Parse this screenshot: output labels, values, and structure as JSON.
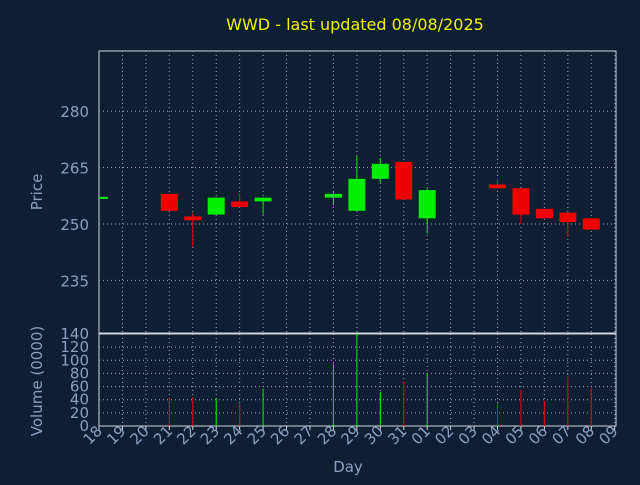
{
  "colors": {
    "background": "#0f1f33",
    "frame": "#cfd6de",
    "grid": "#9aa4b0",
    "title": "#f2f200",
    "axis_text": "#8aa0bf",
    "up": "#00ee00",
    "down": "#ee0000"
  },
  "chart_data": [
    {
      "type": "candlestick",
      "title": "WWD - last updated 08/08/2025",
      "ylabel": "Price",
      "ylim": [
        221,
        296
      ],
      "yticks": [
        235,
        250,
        265,
        280
      ],
      "grid": true,
      "x_labels": [
        "18",
        "19",
        "20",
        "21",
        "22",
        "23",
        "24",
        "25",
        "26",
        "27",
        "28",
        "29",
        "30",
        "31",
        "01",
        "02",
        "03",
        "04",
        "05",
        "06",
        "07",
        "08",
        "09"
      ],
      "candles": [
        {
          "x": "18",
          "open": 257.2,
          "close": 257.2,
          "high": 257.2,
          "low": 257.2
        },
        {
          "x": "21",
          "open": 258.0,
          "close": 253.5,
          "high": 258.0,
          "low": 253.5
        },
        {
          "x": "22",
          "open": 252.0,
          "close": 251.0,
          "high": 253.0,
          "low": 244.0
        },
        {
          "x": "23",
          "open": 252.5,
          "close": 257.0,
          "high": 257.0,
          "low": 252.5
        },
        {
          "x": "24",
          "open": 256.0,
          "close": 254.5,
          "high": 258.0,
          "low": 254.5
        },
        {
          "x": "25",
          "open": 256.0,
          "close": 257.0,
          "high": 257.0,
          "low": 252.5
        },
        {
          "x": "28",
          "open": 257.0,
          "close": 258.0,
          "high": 258.5,
          "low": 255.0
        },
        {
          "x": "29",
          "open": 253.5,
          "close": 262.0,
          "high": 268.0,
          "low": 253.5
        },
        {
          "x": "30",
          "open": 262.0,
          "close": 266.0,
          "high": 267.5,
          "low": 261.0
        },
        {
          "x": "31",
          "open": 266.5,
          "close": 256.5,
          "high": 266.5,
          "low": 256.5
        },
        {
          "x": "01",
          "open": 251.5,
          "close": 259.0,
          "high": 259.5,
          "low": 247.5
        },
        {
          "x": "04",
          "open": 260.5,
          "close": 259.5,
          "high": 262.0,
          "low": 259.5
        },
        {
          "x": "05",
          "open": 259.5,
          "close": 252.5,
          "high": 259.5,
          "low": 250.0
        },
        {
          "x": "06",
          "open": 254.0,
          "close": 251.5,
          "high": 254.0,
          "low": 251.5
        },
        {
          "x": "07",
          "open": 253.0,
          "close": 250.5,
          "high": 253.0,
          "low": 246.5
        },
        {
          "x": "08",
          "open": 251.5,
          "close": 248.5,
          "high": 251.5,
          "low": 248.5
        }
      ]
    },
    {
      "type": "bar",
      "ylabel": "Volume (0000)",
      "xlabel": "Day",
      "ylim": [
        0,
        140
      ],
      "yticks": [
        0,
        20,
        40,
        60,
        80,
        100,
        120,
        140
      ],
      "grid": true,
      "x_labels": [
        "18",
        "19",
        "20",
        "21",
        "22",
        "23",
        "24",
        "25",
        "26",
        "27",
        "28",
        "29",
        "30",
        "31",
        "01",
        "02",
        "03",
        "04",
        "05",
        "06",
        "07",
        "08",
        "09"
      ],
      "bars": [
        {
          "x": "21",
          "value": 42,
          "direction": "down"
        },
        {
          "x": "22",
          "value": 44,
          "direction": "down"
        },
        {
          "x": "23",
          "value": 42,
          "direction": "up"
        },
        {
          "x": "24",
          "value": 34,
          "direction": "down"
        },
        {
          "x": "25",
          "value": 57,
          "direction": "up"
        },
        {
          "x": "28",
          "value": 95,
          "direction": "up"
        },
        {
          "x": "29",
          "value": 140,
          "direction": "up"
        },
        {
          "x": "30",
          "value": 52,
          "direction": "up"
        },
        {
          "x": "31",
          "value": 68,
          "direction": "down"
        },
        {
          "x": "01",
          "value": 80,
          "direction": "up"
        },
        {
          "x": "04",
          "value": 34,
          "direction": "down"
        },
        {
          "x": "05",
          "value": 55,
          "direction": "down"
        },
        {
          "x": "06",
          "value": 38,
          "direction": "down"
        },
        {
          "x": "07",
          "value": 75,
          "direction": "down"
        },
        {
          "x": "08",
          "value": 58,
          "direction": "down"
        }
      ]
    }
  ]
}
